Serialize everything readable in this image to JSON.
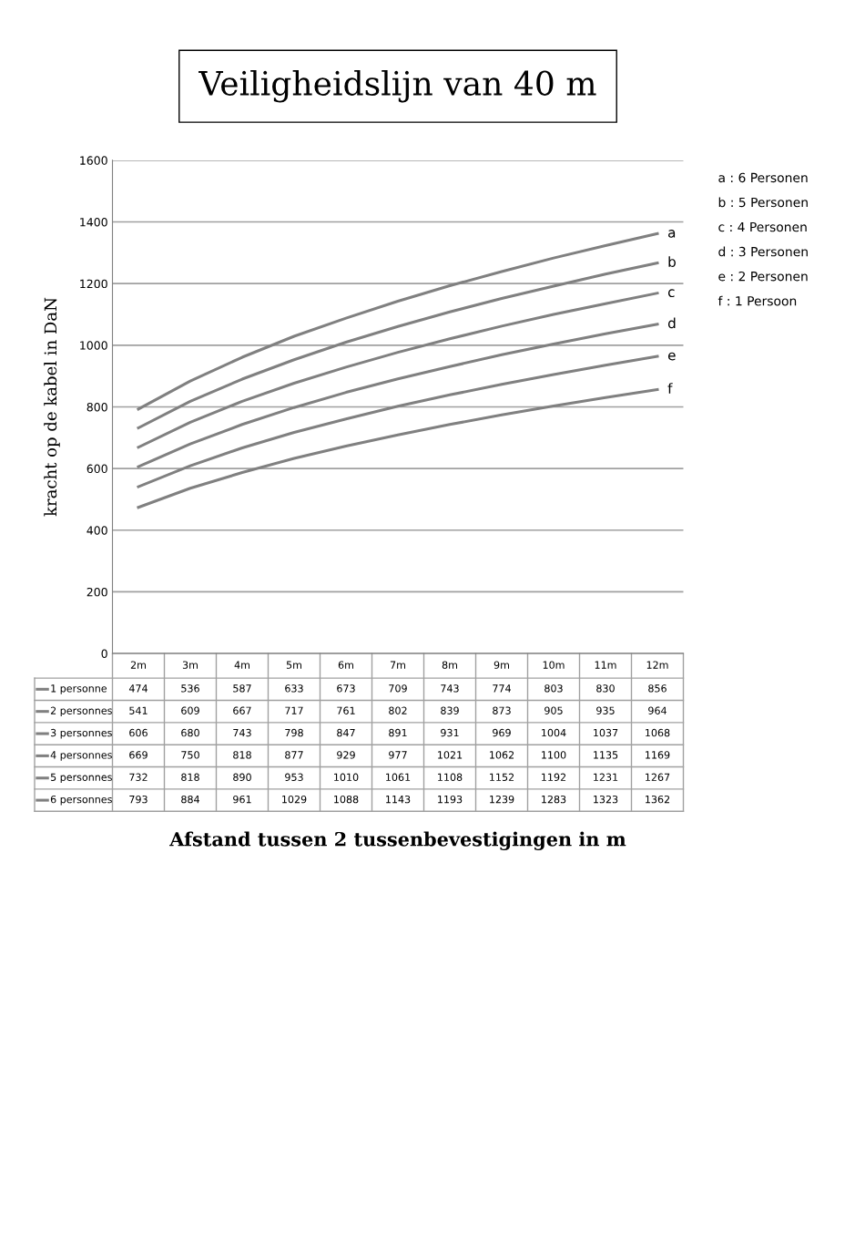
{
  "chart_data": {
    "type": "line",
    "title": "Veiligheidslijn van 40 m",
    "ylabel": "kracht op de kabel in DaN",
    "categories": [
      "2m",
      "3m",
      "4m",
      "5m",
      "6m",
      "7m",
      "8m",
      "9m",
      "10m",
      "11m",
      "12m"
    ],
    "series": [
      {
        "name": "1 personne",
        "color": "#808080",
        "values": [
          474,
          536,
          587,
          633,
          673,
          709,
          743,
          774,
          803,
          830,
          856
        ]
      },
      {
        "name": "2 personnes",
        "color": "#808080",
        "values": [
          541,
          609,
          667,
          717,
          761,
          802,
          839,
          873,
          905,
          935,
          964
        ]
      },
      {
        "name": "3 personnes",
        "color": "#808080",
        "values": [
          606,
          680,
          743,
          798,
          847,
          891,
          931,
          969,
          1004,
          1037,
          1068
        ]
      },
      {
        "name": "4 personnes",
        "color": "#808080",
        "values": [
          669,
          750,
          818,
          877,
          929,
          977,
          1021,
          1062,
          1100,
          1135,
          1169
        ]
      },
      {
        "name": "5 personnes",
        "color": "#808080",
        "values": [
          732,
          818,
          890,
          953,
          1010,
          1061,
          1108,
          1152,
          1192,
          1231,
          1267
        ]
      },
      {
        "name": "6 personnes",
        "color": "#808080",
        "values": [
          793,
          884,
          961,
          1029,
          1088,
          1143,
          1193,
          1239,
          1283,
          1323,
          1362
        ]
      }
    ],
    "ylim": [
      0,
      1600
    ],
    "yticks": [
      0,
      200,
      400,
      600,
      800,
      1000,
      1200,
      1400,
      1600
    ],
    "grid": "y",
    "legend": "bottom left",
    "data_labels": true,
    "marker": "none",
    "line_style": "solid",
    "annotations": [
      {
        "text": "a",
        "x": "12m",
        "y": 1362
      },
      {
        "text": "b",
        "x": "12m",
        "y": 1267
      },
      {
        "text": "c",
        "x": "12m",
        "y": 1169
      },
      {
        "text": "d",
        "x": "12m",
        "y": 1068
      },
      {
        "text": "e",
        "x": "12m",
        "y": 964
      },
      {
        "text": "f",
        "x": "12m",
        "y": 856
      },
      "Afstand tussen 2 tussenbevestigingen in m",
      "a : 6 Personen",
      "b : 5 Personen",
      "c : 4 Personen",
      "d : 3 Personen",
      "e : 2 Personen",
      "f : 1 Persoon"
    ]
  }
}
